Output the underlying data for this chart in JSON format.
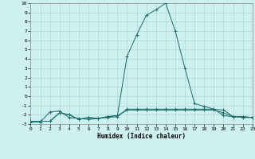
{
  "xlabel": "Humidex (Indice chaleur)",
  "xlim": [
    0,
    23
  ],
  "ylim": [
    -3,
    10
  ],
  "xticks": [
    0,
    1,
    2,
    3,
    4,
    5,
    6,
    7,
    8,
    9,
    10,
    11,
    12,
    13,
    14,
    15,
    16,
    17,
    18,
    19,
    20,
    21,
    22,
    23
  ],
  "yticks": [
    -3,
    -2,
    -1,
    0,
    1,
    2,
    3,
    4,
    5,
    6,
    7,
    8,
    9,
    10
  ],
  "bg_color": "#cef0ee",
  "grid_color": "#aad8d4",
  "line_color": "#1a6b6b",
  "line1_x": [
    0,
    1,
    2,
    3,
    4,
    5,
    6,
    7,
    8,
    9,
    10,
    11,
    12,
    13,
    14,
    15,
    16,
    17,
    18,
    19,
    20,
    21,
    22,
    23
  ],
  "line1_y": [
    -2.7,
    -2.7,
    -2.7,
    -1.8,
    -2.0,
    -2.5,
    -2.3,
    -2.4,
    -2.2,
    -2.1,
    -1.5,
    -1.5,
    -1.5,
    -1.5,
    -1.5,
    -1.5,
    -1.5,
    -1.5,
    -1.5,
    -1.5,
    -1.8,
    -2.2,
    -2.2,
    -2.3
  ],
  "line2_x": [
    0,
    1,
    2,
    3,
    4,
    5,
    6,
    7,
    8,
    9,
    10,
    11,
    12,
    13,
    14,
    15,
    16,
    17,
    18,
    19,
    20,
    21,
    22,
    23
  ],
  "line2_y": [
    -2.8,
    -2.8,
    -1.7,
    -1.6,
    -2.3,
    -2.4,
    -2.5,
    -2.4,
    -2.3,
    -2.2,
    -1.4,
    -1.4,
    -1.4,
    -1.4,
    -1.4,
    -1.4,
    -1.4,
    -1.4,
    -1.4,
    -1.4,
    -2.1,
    -2.2,
    -2.3,
    -2.3
  ],
  "line3_x": [
    0,
    1,
    2,
    3,
    4,
    5,
    6,
    7,
    8,
    9,
    10,
    11,
    12,
    13,
    14,
    15,
    16,
    17,
    18,
    19,
    20,
    21,
    22,
    23
  ],
  "line3_y": [
    -2.7,
    -2.7,
    -2.7,
    -1.8,
    -2.0,
    -2.5,
    -2.3,
    -2.4,
    -2.2,
    -2.1,
    4.3,
    6.6,
    8.7,
    9.3,
    10.0,
    7.0,
    3.0,
    -0.8,
    -1.1,
    -1.4,
    -1.5,
    -2.2,
    -2.2,
    -2.3
  ]
}
